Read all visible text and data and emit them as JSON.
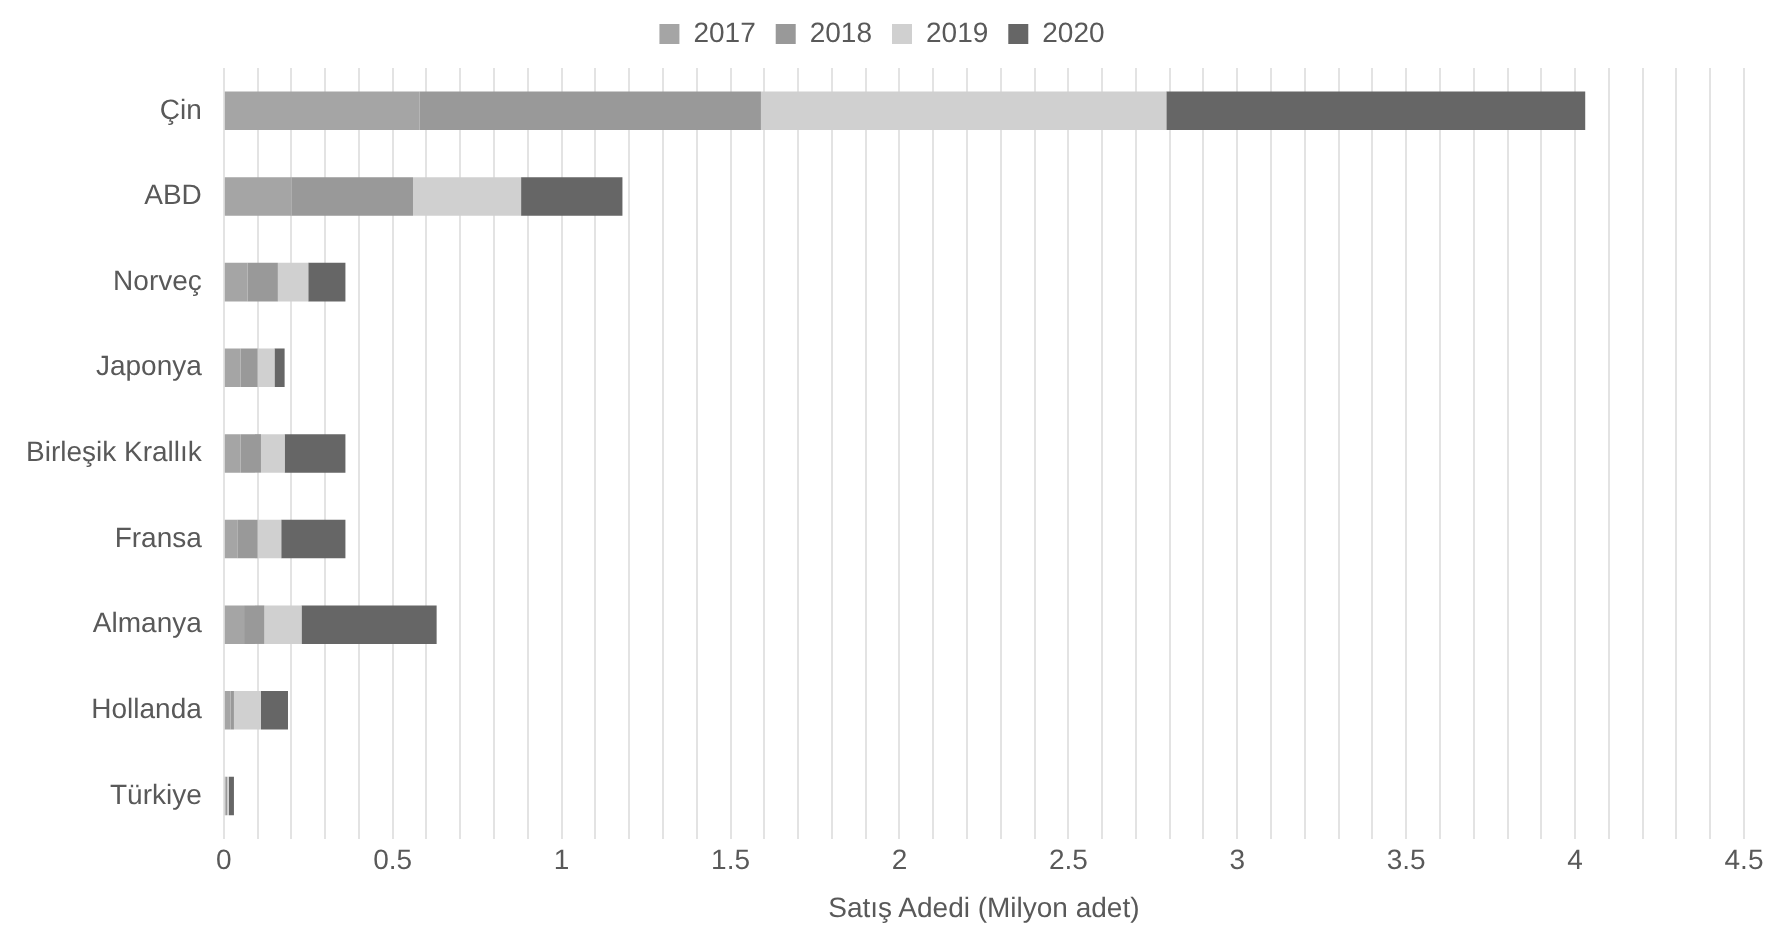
{
  "chart_data": {
    "type": "bar",
    "orientation": "horizontal",
    "stacked": true,
    "xlabel": "Satış Adedi (Milyon adet)",
    "categories": [
      "Çin",
      "ABD",
      "Norveç",
      "Japonya",
      "Birleşik Krallık",
      "Fransa",
      "Almanya",
      "Hollanda",
      "Türkiye"
    ],
    "series": [
      {
        "name": "2017",
        "color": "#a5a5a5",
        "values": [
          0.58,
          0.2,
          0.07,
          0.05,
          0.05,
          0.04,
          0.06,
          0.02,
          0.005
        ]
      },
      {
        "name": "2018",
        "color": "#999999",
        "values": [
          1.01,
          0.36,
          0.09,
          0.05,
          0.06,
          0.06,
          0.06,
          0.01,
          0.005
        ]
      },
      {
        "name": "2019",
        "color": "#d0d0d0",
        "values": [
          1.2,
          0.32,
          0.09,
          0.05,
          0.07,
          0.07,
          0.11,
          0.08,
          0.005
        ]
      },
      {
        "name": "2020",
        "color": "#666666",
        "values": [
          1.24,
          0.3,
          0.11,
          0.03,
          0.18,
          0.19,
          0.4,
          0.08,
          0.015
        ]
      }
    ],
    "xlim": [
      0,
      4.5
    ],
    "xticks": [
      0,
      {
        "value": 0.1,
        "label": null
      },
      {
        "value": 0.2,
        "label": null
      },
      {
        "value": 0.3,
        "label": null
      },
      {
        "value": 0.4,
        "label": null
      },
      0.5,
      {
        "value": 0.6,
        "label": null
      },
      {
        "value": 0.7,
        "label": null
      },
      {
        "value": 0.8,
        "label": null
      },
      {
        "value": 0.9,
        "label": null
      },
      1,
      {
        "value": 1.1,
        "label": null
      },
      {
        "value": 1.2,
        "label": null
      },
      {
        "value": 1.3,
        "label": null
      },
      {
        "value": 1.4,
        "label": null
      },
      1.5,
      {
        "value": 1.6,
        "label": null
      },
      {
        "value": 1.7,
        "label": null
      },
      {
        "value": 1.8,
        "label": null
      },
      {
        "value": 1.9,
        "label": null
      },
      2,
      {
        "value": 2.1,
        "label": null
      },
      {
        "value": 2.2,
        "label": null
      },
      {
        "value": 2.3,
        "label": null
      },
      {
        "value": 2.4,
        "label": null
      },
      2.5,
      {
        "value": 2.6,
        "label": null
      },
      {
        "value": 2.7,
        "label": null
      },
      {
        "value": 2.8,
        "label": null
      },
      {
        "value": 2.9,
        "label": null
      },
      3,
      {
        "value": 3.1,
        "label": null
      },
      {
        "value": 3.2,
        "label": null
      },
      {
        "value": 3.3,
        "label": null
      },
      {
        "value": 3.4,
        "label": null
      },
      3.5,
      {
        "value": 3.6,
        "label": null
      },
      {
        "value": 3.7,
        "label": null
      },
      {
        "value": 3.8,
        "label": null
      },
      {
        "value": 3.9,
        "label": null
      },
      4,
      {
        "value": 4.1,
        "label": null
      },
      {
        "value": 4.2,
        "label": null
      },
      {
        "value": 4.3,
        "label": null
      },
      {
        "value": 4.4,
        "label": null
      },
      4.5
    ],
    "grid": "x",
    "legend": "top"
  }
}
